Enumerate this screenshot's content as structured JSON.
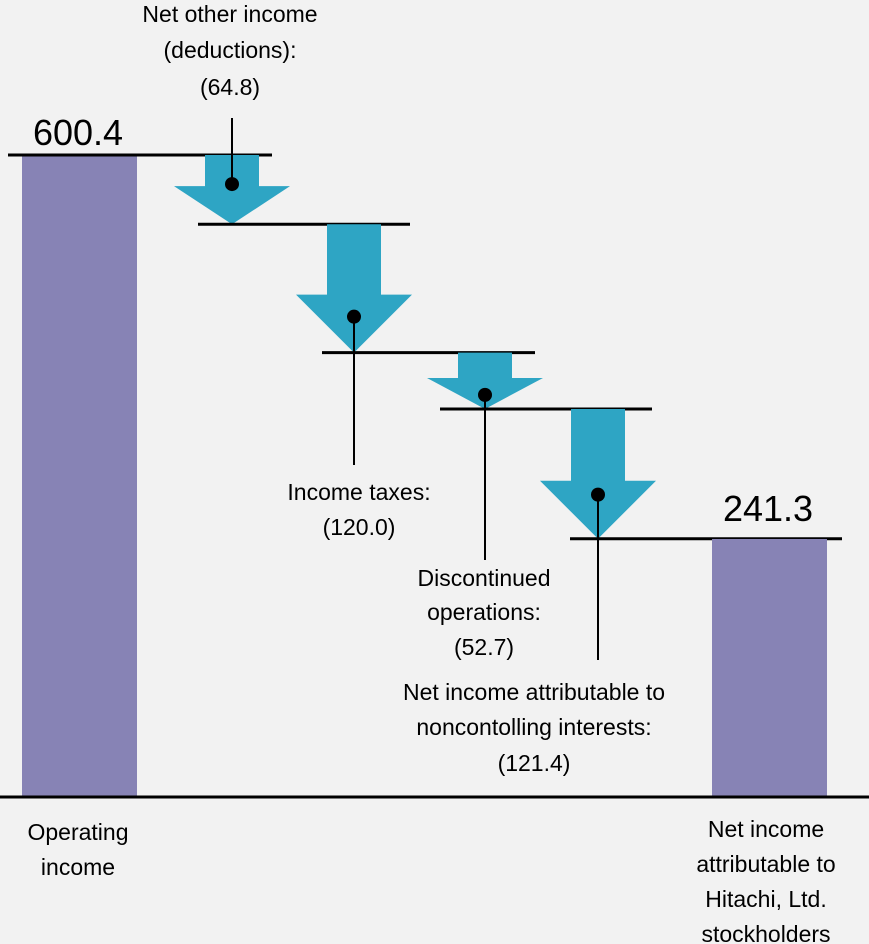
{
  "chart_data": {
    "type": "waterfall",
    "units": "",
    "colors": {
      "total_bar": "#8783b5",
      "arrow": "#2ea5c4",
      "background": "#f2f2f2",
      "line": "#000000"
    },
    "start": {
      "category_lines": [
        "Operating",
        "income"
      ],
      "value": 600.4,
      "value_label": "600.4"
    },
    "steps": [
      {
        "label_lines": [
          "Net other income",
          "(deductions):",
          "(64.8)"
        ],
        "value": -64.8
      },
      {
        "label_lines": [
          "Income taxes:",
          "(120.0)"
        ],
        "value": -120.0
      },
      {
        "label_lines": [
          "Discontinued",
          "operations:",
          "(52.7)"
        ],
        "value": -52.7
      },
      {
        "label_lines": [
          "Net income attributable to",
          "noncontolling interests:",
          "(121.4)"
        ],
        "value": -121.4
      }
    ],
    "end": {
      "category_lines": [
        "Net income",
        "attributable to",
        "Hitachi, Ltd.",
        "stockholders"
      ],
      "value": 241.3,
      "value_label": "241.3"
    }
  }
}
